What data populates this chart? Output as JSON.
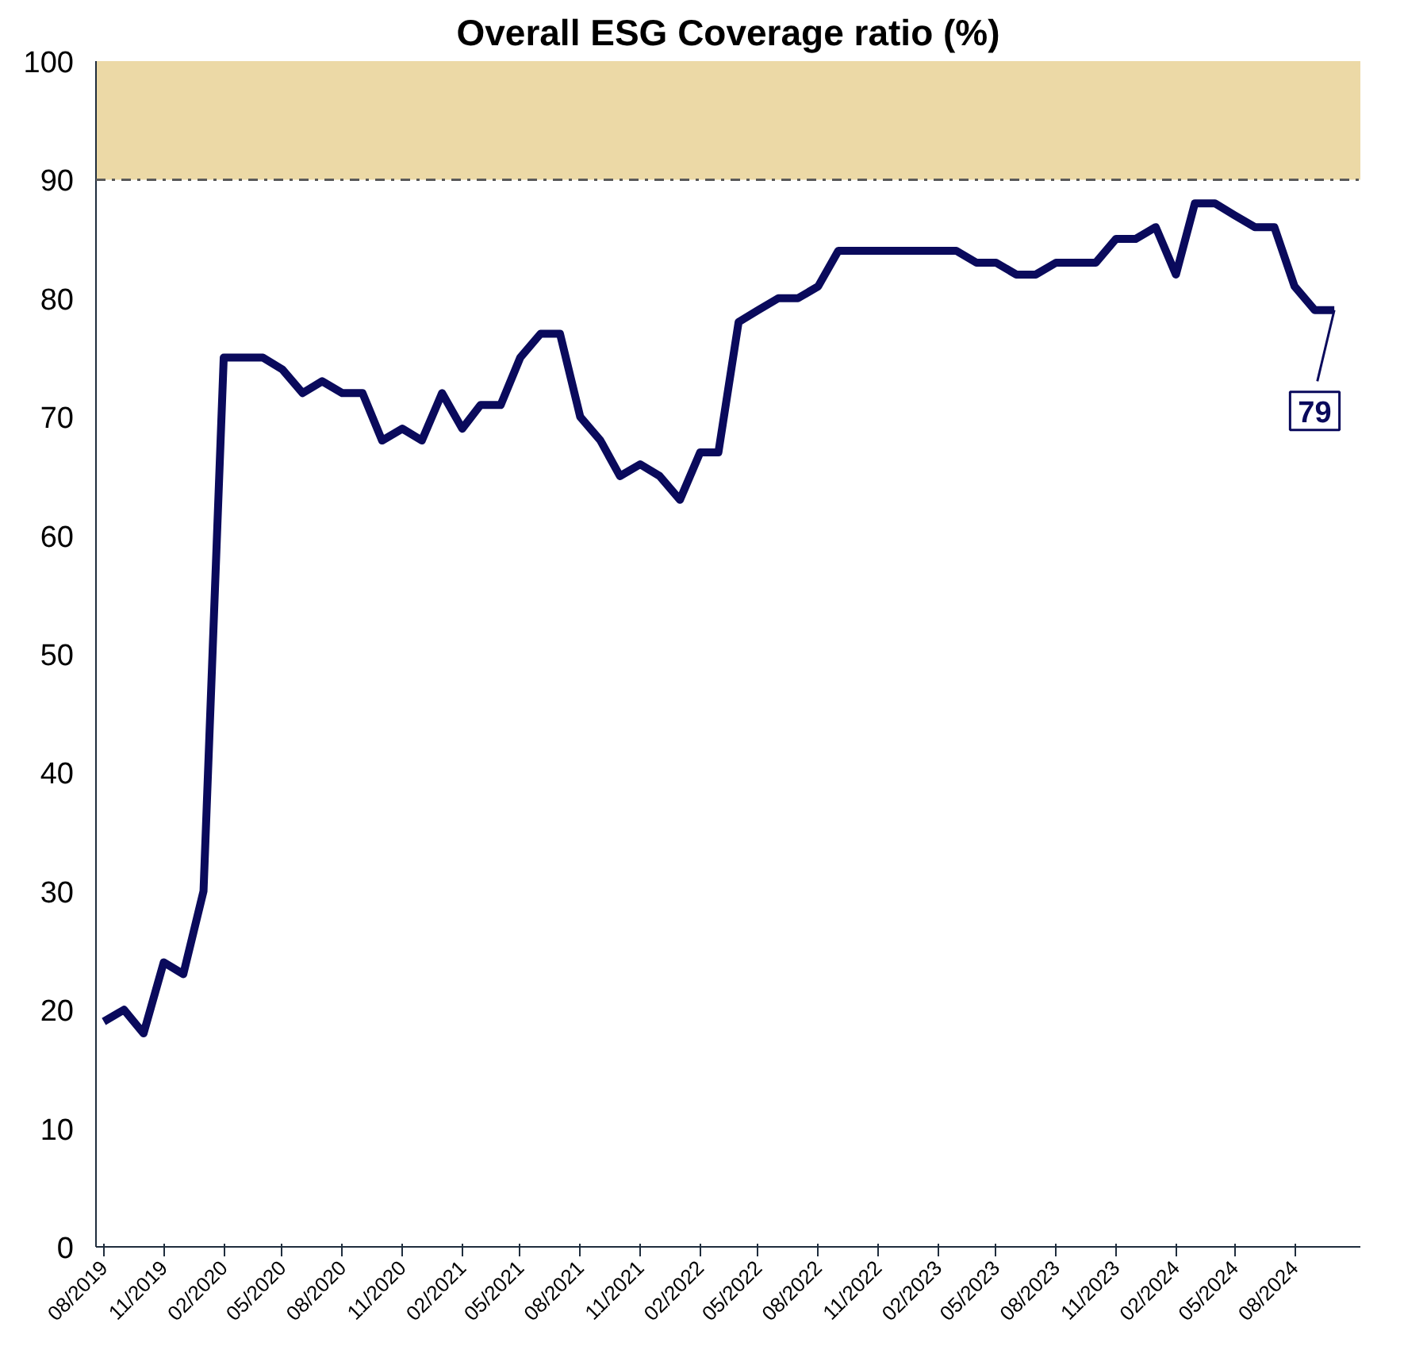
{
  "chart_data": {
    "type": "line",
    "title": "Overall ESG Coverage ratio (%)",
    "x": [
      "2019-08",
      "2019-09",
      "2019-10",
      "2019-11",
      "2019-12",
      "2020-01",
      "2020-02",
      "2020-03",
      "2020-04",
      "2020-05",
      "2020-06",
      "2020-07",
      "2020-08",
      "2020-09",
      "2020-10",
      "2020-11",
      "2020-12",
      "2021-01",
      "2021-02",
      "2021-03",
      "2021-04",
      "2021-05",
      "2021-06",
      "2021-07",
      "2021-08",
      "2021-09",
      "2021-10",
      "2021-11",
      "2021-12",
      "2022-01",
      "2022-02",
      "2022-03",
      "2022-04",
      "2022-05",
      "2022-06",
      "2022-07",
      "2022-08",
      "2022-09",
      "2022-10",
      "2022-11",
      "2022-12",
      "2023-01",
      "2023-02",
      "2023-03",
      "2023-04",
      "2023-05",
      "2023-06",
      "2023-07",
      "2023-08",
      "2023-09",
      "2023-10",
      "2023-11",
      "2023-12",
      "2024-01",
      "2024-02",
      "2024-03",
      "2024-04",
      "2024-05",
      "2024-06",
      "2024-07",
      "2024-08",
      "2024-09",
      "2024-10"
    ],
    "series": [
      {
        "color": "#0a0a5c",
        "values": [
          19,
          20,
          18,
          24,
          23,
          30,
          75,
          75,
          75,
          74,
          72,
          73,
          72,
          72,
          68,
          69,
          68,
          72,
          69,
          71,
          71,
          75,
          77,
          77,
          70,
          68,
          65,
          66,
          65,
          63,
          67,
          67,
          78,
          79,
          80,
          80,
          81,
          84,
          84,
          84,
          84,
          84,
          84,
          84,
          83,
          83,
          82,
          82,
          83,
          83,
          83,
          85,
          85,
          86,
          82,
          88,
          88,
          87,
          86,
          86,
          81,
          79,
          79
        ]
      }
    ],
    "xlim": [
      "2019-07-20",
      "2024-11-10"
    ],
    "xticks": [
      {
        "value": "2019-08",
        "label": "08/2019"
      },
      {
        "value": "2019-11",
        "label": "11/2019"
      },
      {
        "value": "2020-02",
        "label": "02/2020"
      },
      {
        "value": "2020-05",
        "label": "05/2020"
      },
      {
        "value": "2020-08",
        "label": "08/2020"
      },
      {
        "value": "2020-11",
        "label": "11/2020"
      },
      {
        "value": "2021-02",
        "label": "02/2021"
      },
      {
        "value": "2021-05",
        "label": "05/2021"
      },
      {
        "value": "2021-08",
        "label": "08/2021"
      },
      {
        "value": "2021-11",
        "label": "11/2021"
      },
      {
        "value": "2022-02",
        "label": "02/2022"
      },
      {
        "value": "2022-05",
        "label": "05/2022"
      },
      {
        "value": "2022-08",
        "label": "08/2022"
      },
      {
        "value": "2022-11",
        "label": "11/2022"
      },
      {
        "value": "2023-02",
        "label": "02/2023"
      },
      {
        "value": "2023-05",
        "label": "05/2023"
      },
      {
        "value": "2023-08",
        "label": "08/2023"
      },
      {
        "value": "2023-11",
        "label": "11/2023"
      },
      {
        "value": "2024-02",
        "label": "02/2024"
      },
      {
        "value": "2024-05",
        "label": "05/2024"
      },
      {
        "value": "2024-08",
        "label": "08/2024"
      }
    ],
    "ylim": [
      0,
      100
    ],
    "yticks": [
      0,
      10,
      20,
      30,
      40,
      50,
      60,
      70,
      80,
      90,
      100
    ],
    "grid": false,
    "marker": "none",
    "line_style": "solid",
    "ref_lines": [
      {
        "axis": "y",
        "value": 90,
        "color": "#5a5a5a",
        "line_style": "dashdot"
      }
    ],
    "bands": [
      {
        "axis": "y",
        "from": 90,
        "to": 100,
        "color": "#ecd9a6"
      }
    ],
    "annotations": [
      {
        "text": "79",
        "x": "2024-10",
        "y": 79
      }
    ]
  }
}
